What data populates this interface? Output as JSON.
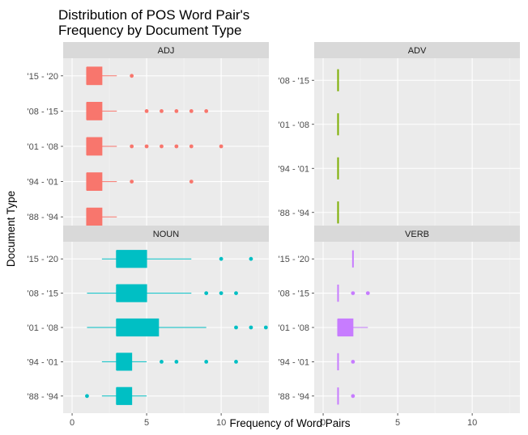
{
  "chart_data": {
    "type": "boxplot",
    "title": "Distribution of POS Word Pair's\nFrequency by Document Type",
    "xlabel": "Frequency of Word Pairs",
    "ylabel": "Document Type",
    "xlim": [
      -0.6,
      13.2
    ],
    "xticks": [
      0,
      5,
      10
    ],
    "grid": true,
    "facets": [
      {
        "name": "ADJ",
        "color": "#F8766D",
        "categories": [
          "'88 - '94",
          "'94 - '01",
          "'01 - '08",
          "'08 - '15",
          "'15 - '20"
        ],
        "boxes": [
          {
            "category": "'15 - '20",
            "min": 1,
            "q1": 1,
            "median": 1,
            "q3": 2,
            "max": 3,
            "outliers": [
              4
            ]
          },
          {
            "category": "'08 - '15",
            "min": 1,
            "q1": 1,
            "median": 1,
            "q3": 2,
            "max": 3,
            "outliers": [
              5,
              6,
              7,
              8,
              9
            ]
          },
          {
            "category": "'01 - '08",
            "min": 1,
            "q1": 1,
            "median": 1,
            "q3": 2,
            "max": 3,
            "outliers": [
              4,
              5,
              6,
              7,
              8,
              10
            ]
          },
          {
            "category": "'94 - '01",
            "min": 1,
            "q1": 1,
            "median": 1,
            "q3": 2,
            "max": 3,
            "outliers": [
              4,
              8
            ]
          },
          {
            "category": "'88 - '94",
            "min": 1,
            "q1": 1,
            "median": 1,
            "q3": 2,
            "max": 3,
            "outliers": []
          }
        ]
      },
      {
        "name": "ADV",
        "color": "#7CAE00",
        "categories": [
          "'88 - '94",
          "'94 - '01",
          "'01 - '08",
          "'08 - '15"
        ],
        "boxes": [
          {
            "category": "'08 - '15",
            "min": 1,
            "q1": 1,
            "median": 1,
            "q3": 1,
            "max": 1,
            "outliers": []
          },
          {
            "category": "'01 - '08",
            "min": 1,
            "q1": 1,
            "median": 1,
            "q3": 1,
            "max": 1,
            "outliers": []
          },
          {
            "category": "'94 - '01",
            "min": 1,
            "q1": 1,
            "median": 1,
            "q3": 1,
            "max": 1,
            "outliers": []
          },
          {
            "category": "'88 - '94",
            "min": 1,
            "q1": 1,
            "median": 1,
            "q3": 1,
            "max": 1,
            "outliers": []
          }
        ]
      },
      {
        "name": "NOUN",
        "color": "#00BFC4",
        "categories": [
          "'88 - '94",
          "'94 - '01",
          "'01 - '08",
          "'08 - '15",
          "'15 - '20"
        ],
        "boxes": [
          {
            "category": "'15 - '20",
            "min": 2,
            "q1": 3,
            "median": 3,
            "q3": 5,
            "max": 8,
            "outliers": [
              10,
              12
            ]
          },
          {
            "category": "'08 - '15",
            "min": 1,
            "q1": 3,
            "median": 3,
            "q3": 5,
            "max": 8,
            "outliers": [
              9,
              10,
              11
            ]
          },
          {
            "category": "'01 - '08",
            "min": 1,
            "q1": 3,
            "median": 3,
            "q3": 5.8,
            "max": 9,
            "outliers": [
              11,
              12,
              13
            ]
          },
          {
            "category": "'94 - '01",
            "min": 2,
            "q1": 3,
            "median": 3,
            "q3": 4,
            "max": 5,
            "outliers": [
              6,
              7,
              9,
              11
            ]
          },
          {
            "category": "'88 - '94",
            "min": 2,
            "q1": 3,
            "median": 3,
            "q3": 4,
            "max": 5,
            "outliers": [
              1
            ]
          }
        ]
      },
      {
        "name": "VERB",
        "color": "#C77CFF",
        "categories": [
          "'88 - '94",
          "'94 - '01",
          "'01 - '08",
          "'08 - '15",
          "'15 - '20"
        ],
        "boxes": [
          {
            "category": "'15 - '20",
            "min": 2,
            "q1": 2,
            "median": 2,
            "q3": 2,
            "max": 2,
            "outliers": []
          },
          {
            "category": "'08 - '15",
            "min": 1,
            "q1": 1,
            "median": 1,
            "q3": 1,
            "max": 1,
            "outliers": [
              2,
              3
            ]
          },
          {
            "category": "'01 - '08",
            "min": 1,
            "q1": 1,
            "median": 1,
            "q3": 2,
            "max": 3,
            "outliers": []
          },
          {
            "category": "'94 - '01",
            "min": 1,
            "q1": 1,
            "median": 1,
            "q3": 1,
            "max": 1,
            "outliers": [
              2
            ]
          },
          {
            "category": "'88 - '94",
            "min": 1,
            "q1": 1,
            "median": 1,
            "q3": 1,
            "max": 1,
            "outliers": [
              2
            ]
          }
        ]
      }
    ]
  }
}
